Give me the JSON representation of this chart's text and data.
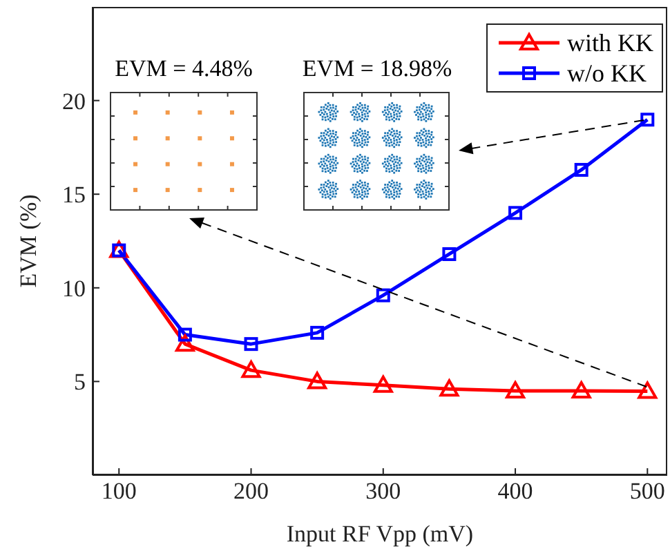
{
  "chart_data": {
    "type": "line",
    "xlabel": "Input RF Vpp (mV)",
    "ylabel": "EVM (%)",
    "x": [
      100,
      150,
      200,
      250,
      300,
      350,
      400,
      450,
      500
    ],
    "series": [
      {
        "name": "with KK",
        "color": "#ff0000",
        "marker": "triangle",
        "values": [
          12,
          7,
          5.6,
          5,
          4.8,
          4.6,
          4.5,
          4.5,
          4.48
        ]
      },
      {
        "name": "w/o KK",
        "color": "#0000ff",
        "marker": "square",
        "values": [
          12,
          7.5,
          7,
          7.6,
          9.6,
          11.8,
          14,
          16.3,
          18.98
        ]
      }
    ],
    "xlim": [
      80,
      515
    ],
    "xticks": [
      100,
      200,
      300,
      400,
      500
    ],
    "ylim": [
      0,
      25
    ],
    "yticks": [
      5,
      10,
      15,
      20
    ],
    "grid": false,
    "legend": "top right",
    "line_style": "solid",
    "annotations": [
      "EVM = 4.48%",
      "EVM = 18.98%"
    ]
  }
}
